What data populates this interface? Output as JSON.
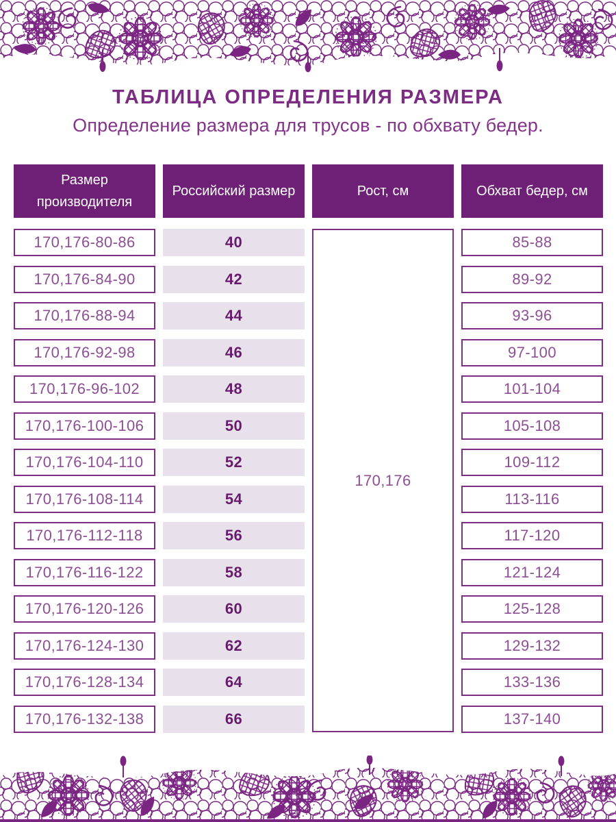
{
  "page": {
    "title": "ТАБЛИЦА ОПРЕДЕЛЕНИЯ РАЗМЕРА",
    "subtitle": "Определение размера для трусов - по обхвату бедер."
  },
  "colors": {
    "lace": "#7B2583",
    "header_bg": "#6E2076",
    "header_text": "#FFFFFF",
    "cell_border": "#7B2E82",
    "cell_text": "#8D4E94",
    "size_cell_bg": "#E8E1EB",
    "size_cell_text": "#671B6B",
    "title_text": "#7C2C82"
  },
  "decor": {
    "top_border": "lace-ornament",
    "bottom_border": "lace-ornament"
  },
  "table": {
    "headers": {
      "manufacturer": "Размер производителя",
      "russian": "Российский размер",
      "height": "Рост, см",
      "hips": "Обхват бедер, см"
    },
    "height_value": "170,176",
    "rows": [
      {
        "manufacturer": "170,176-80-86",
        "russian": "40",
        "hips": "85-88"
      },
      {
        "manufacturer": "170,176-84-90",
        "russian": "42",
        "hips": "89-92"
      },
      {
        "manufacturer": "170,176-88-94",
        "russian": "44",
        "hips": "93-96"
      },
      {
        "manufacturer": "170,176-92-98",
        "russian": "46",
        "hips": "97-100"
      },
      {
        "manufacturer": "170,176-96-102",
        "russian": "48",
        "hips": "101-104"
      },
      {
        "manufacturer": "170,176-100-106",
        "russian": "50",
        "hips": "105-108"
      },
      {
        "manufacturer": "170,176-104-110",
        "russian": "52",
        "hips": "109-112"
      },
      {
        "manufacturer": "170,176-108-114",
        "russian": "54",
        "hips": "113-116"
      },
      {
        "manufacturer": "170,176-112-118",
        "russian": "56",
        "hips": "117-120"
      },
      {
        "manufacturer": "170,176-116-122",
        "russian": "58",
        "hips": "121-124"
      },
      {
        "manufacturer": "170,176-120-126",
        "russian": "60",
        "hips": "125-128"
      },
      {
        "manufacturer": "170,176-124-130",
        "russian": "62",
        "hips": "129-132"
      },
      {
        "manufacturer": "170,176-128-134",
        "russian": "64",
        "hips": "133-136"
      },
      {
        "manufacturer": "170,176-132-138",
        "russian": "66",
        "hips": "137-140"
      }
    ]
  }
}
